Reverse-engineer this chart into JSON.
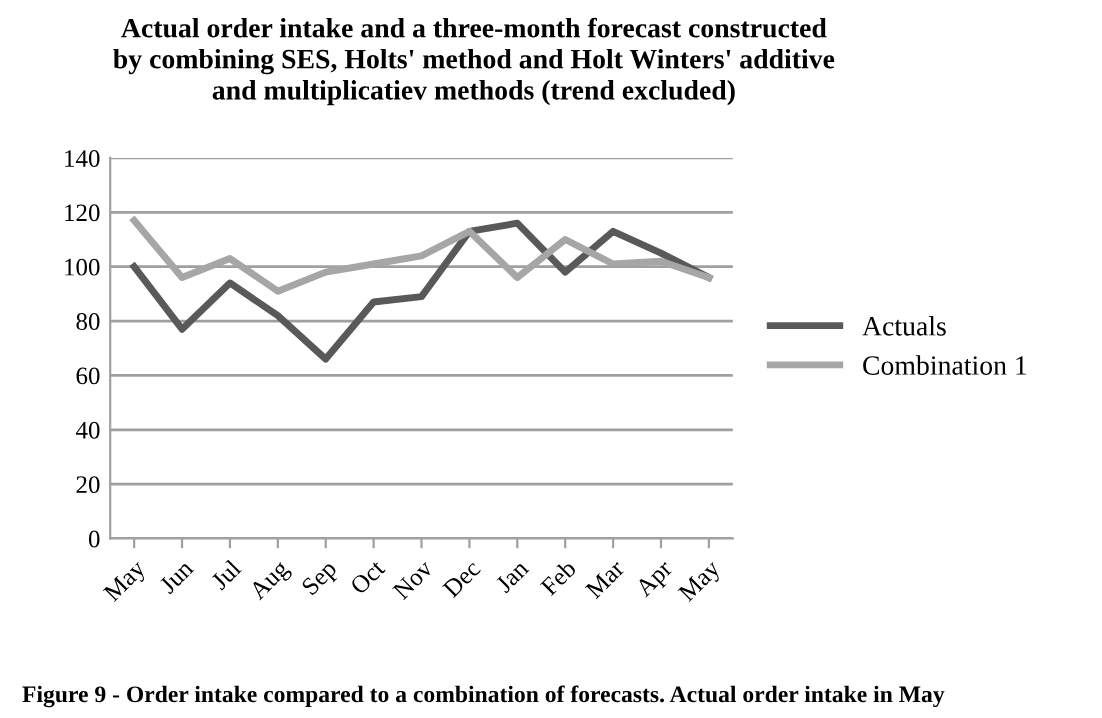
{
  "chart_data": {
    "type": "line",
    "title": "Actual order intake and a three-month forecast constructed\nby combining SES, Holts' method and Holt Winters' additive\nand multiplicatiev methods (trend excluded)",
    "categories": [
      "May",
      "Jun",
      "Jul",
      "Aug",
      "Sep",
      "Oct",
      "Nov",
      "Dec",
      "Jan",
      "Feb",
      "Mar",
      "Apr",
      "May"
    ],
    "series": [
      {
        "name": "Actuals",
        "color": "#595959",
        "values": [
          100,
          77,
          94,
          82,
          66,
          87,
          89,
          113,
          116,
          98,
          113,
          105,
          96
        ]
      },
      {
        "name": "Combination 1",
        "color": "#a6a6a6",
        "values": [
          117,
          96,
          103,
          91,
          98,
          101,
          104,
          113,
          96,
          110,
          101,
          102,
          96
        ]
      }
    ],
    "ylim": [
      0,
      140
    ],
    "yticks": [
      0,
      20,
      40,
      60,
      80,
      100,
      120,
      140
    ],
    "grid": "y",
    "legend": "right",
    "marker": "none",
    "line_style": "solid",
    "annotations": [
      "Figure 9 - Order intake compared to a combination of forecasts. Actual order intake in May"
    ]
  }
}
